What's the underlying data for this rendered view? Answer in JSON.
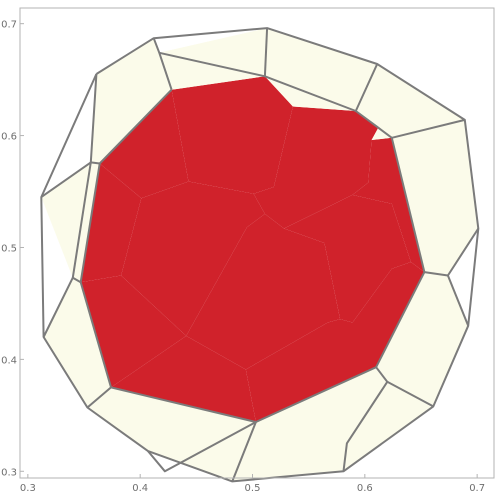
{
  "chart_data": {
    "type": "polygon_map",
    "title": "",
    "xlabel": "",
    "ylabel": "",
    "xlim": [
      0.293,
      0.715
    ],
    "ylim": [
      0.294,
      0.714
    ],
    "xticks": [
      "0.3",
      "0.4",
      "0.5",
      "0.6",
      "0.7"
    ],
    "yticks": [
      "0.3",
      "0.4",
      "0.5",
      "0.6",
      "0.7"
    ],
    "grid": false,
    "colors": {
      "inner": "#d0222b",
      "outer": "#fbfbea",
      "edge": "#7b7b7b"
    },
    "regions": [
      {
        "group": "inner",
        "points": [
          [
            0.428,
            0.641
          ],
          [
            0.511,
            0.653
          ],
          [
            0.536,
            0.626
          ],
          [
            0.519,
            0.554
          ],
          [
            0.501,
            0.548
          ],
          [
            0.443,
            0.559
          ]
        ]
      },
      {
        "group": "inner",
        "points": [
          [
            0.536,
            0.626
          ],
          [
            0.592,
            0.622
          ],
          [
            0.612,
            0.607
          ],
          [
            0.606,
            0.596
          ],
          [
            0.603,
            0.558
          ],
          [
            0.589,
            0.547
          ],
          [
            0.528,
            0.517
          ],
          [
            0.511,
            0.53
          ],
          [
            0.501,
            0.548
          ],
          [
            0.519,
            0.554
          ]
        ]
      },
      {
        "group": "inner",
        "points": [
          [
            0.428,
            0.641
          ],
          [
            0.443,
            0.559
          ],
          [
            0.401,
            0.544
          ],
          [
            0.364,
            0.575
          ]
        ]
      },
      {
        "group": "inner",
        "points": [
          [
            0.364,
            0.575
          ],
          [
            0.401,
            0.544
          ],
          [
            0.383,
            0.475
          ],
          [
            0.347,
            0.469
          ]
        ]
      },
      {
        "group": "inner",
        "points": [
          [
            0.401,
            0.544
          ],
          [
            0.443,
            0.559
          ],
          [
            0.501,
            0.548
          ],
          [
            0.511,
            0.53
          ],
          [
            0.495,
            0.518
          ],
          [
            0.441,
            0.421
          ],
          [
            0.383,
            0.475
          ]
        ]
      },
      {
        "group": "inner",
        "points": [
          [
            0.347,
            0.469
          ],
          [
            0.383,
            0.475
          ],
          [
            0.441,
            0.421
          ],
          [
            0.374,
            0.375
          ]
        ]
      },
      {
        "group": "inner",
        "points": [
          [
            0.511,
            0.53
          ],
          [
            0.528,
            0.517
          ],
          [
            0.564,
            0.504
          ],
          [
            0.578,
            0.436
          ],
          [
            0.567,
            0.433
          ],
          [
            0.494,
            0.391
          ],
          [
            0.441,
            0.421
          ],
          [
            0.495,
            0.518
          ]
        ]
      },
      {
        "group": "inner",
        "points": [
          [
            0.589,
            0.547
          ],
          [
            0.624,
            0.539
          ],
          [
            0.641,
            0.487
          ],
          [
            0.624,
            0.481
          ],
          [
            0.589,
            0.433
          ],
          [
            0.578,
            0.436
          ],
          [
            0.564,
            0.504
          ],
          [
            0.528,
            0.517
          ]
        ]
      },
      {
        "group": "inner",
        "points": [
          [
            0.606,
            0.596
          ],
          [
            0.624,
            0.598
          ],
          [
            0.653,
            0.478
          ],
          [
            0.641,
            0.487
          ],
          [
            0.624,
            0.539
          ],
          [
            0.589,
            0.547
          ],
          [
            0.603,
            0.558
          ]
        ]
      },
      {
        "group": "inner",
        "points": [
          [
            0.374,
            0.375
          ],
          [
            0.441,
            0.421
          ],
          [
            0.494,
            0.391
          ],
          [
            0.503,
            0.344
          ]
        ]
      },
      {
        "group": "inner",
        "points": [
          [
            0.494,
            0.391
          ],
          [
            0.567,
            0.433
          ],
          [
            0.578,
            0.436
          ],
          [
            0.589,
            0.433
          ],
          [
            0.624,
            0.481
          ],
          [
            0.641,
            0.487
          ],
          [
            0.653,
            0.478
          ],
          [
            0.61,
            0.393
          ],
          [
            0.503,
            0.344
          ]
        ]
      },
      {
        "group": "outer",
        "points": [
          [
            0.412,
            0.687
          ],
          [
            0.417,
            0.674
          ],
          [
            0.513,
            0.696
          ],
          [
            0.511,
            0.653
          ],
          [
            0.428,
            0.641
          ],
          [
            0.364,
            0.575
          ],
          [
            0.356,
            0.576
          ],
          [
            0.361,
            0.655
          ]
        ]
      },
      {
        "group": "outer",
        "points": [
          [
            0.417,
            0.674
          ],
          [
            0.513,
            0.696
          ],
          [
            0.511,
            0.653
          ]
        ]
      },
      {
        "group": "outer",
        "points": [
          [
            0.513,
            0.696
          ],
          [
            0.611,
            0.664
          ],
          [
            0.592,
            0.622
          ],
          [
            0.536,
            0.626
          ],
          [
            0.511,
            0.653
          ]
        ]
      },
      {
        "group": "outer",
        "points": [
          [
            0.356,
            0.576
          ],
          [
            0.364,
            0.575
          ],
          [
            0.347,
            0.469
          ],
          [
            0.34,
            0.473
          ]
        ]
      },
      {
        "group": "outer",
        "points": [
          [
            0.34,
            0.473
          ],
          [
            0.347,
            0.469
          ],
          [
            0.374,
            0.375
          ],
          [
            0.353,
            0.357
          ],
          [
            0.314,
            0.42
          ]
        ]
      },
      {
        "group": "outer",
        "points": [
          [
            0.353,
            0.357
          ],
          [
            0.374,
            0.375
          ],
          [
            0.503,
            0.344
          ],
          [
            0.482,
            0.291
          ],
          [
            0.407,
            0.318
          ]
        ]
      },
      {
        "group": "outer",
        "points": [
          [
            0.503,
            0.344
          ],
          [
            0.61,
            0.393
          ],
          [
            0.62,
            0.38
          ],
          [
            0.661,
            0.358
          ],
          [
            0.581,
            0.3
          ],
          [
            0.482,
            0.291
          ]
        ]
      },
      {
        "group": "outer",
        "points": [
          [
            0.62,
            0.38
          ],
          [
            0.61,
            0.393
          ],
          [
            0.653,
            0.478
          ],
          [
            0.674,
            0.475
          ],
          [
            0.692,
            0.43
          ],
          [
            0.661,
            0.358
          ]
        ]
      },
      {
        "group": "outer",
        "points": [
          [
            0.624,
            0.598
          ],
          [
            0.653,
            0.478
          ],
          [
            0.674,
            0.475
          ],
          [
            0.701,
            0.517
          ],
          [
            0.689,
            0.614
          ]
        ]
      },
      {
        "group": "outer",
        "points": [
          [
            0.606,
            0.596
          ],
          [
            0.624,
            0.598
          ],
          [
            0.689,
            0.614
          ],
          [
            0.611,
            0.664
          ],
          [
            0.592,
            0.622
          ],
          [
            0.612,
            0.607
          ]
        ]
      },
      {
        "group": "outer",
        "points": [
          [
            0.356,
            0.576
          ],
          [
            0.312,
            0.545
          ],
          [
            0.34,
            0.473
          ]
        ]
      },
      {
        "group": "outer",
        "points": [
          [
            0.361,
            0.655
          ],
          [
            0.412,
            0.687
          ],
          [
            0.417,
            0.674
          ],
          [
            0.428,
            0.641
          ],
          [
            0.364,
            0.575
          ],
          [
            0.356,
            0.576
          ]
        ]
      }
    ],
    "edges": [
      [
        [
          0.361,
          0.655
        ],
        [
          0.412,
          0.687
        ],
        [
          0.513,
          0.696
        ],
        [
          0.611,
          0.664
        ],
        [
          0.689,
          0.614
        ],
        [
          0.701,
          0.517
        ],
        [
          0.692,
          0.43
        ],
        [
          0.661,
          0.358
        ],
        [
          0.581,
          0.3
        ],
        [
          0.482,
          0.291
        ],
        [
          0.407,
          0.318
        ],
        [
          0.353,
          0.357
        ],
        [
          0.314,
          0.42
        ],
        [
          0.312,
          0.545
        ],
        [
          0.361,
          0.655
        ]
      ],
      [
        [
          0.417,
          0.674
        ],
        [
          0.511,
          0.653
        ],
        [
          0.592,
          0.622
        ],
        [
          0.612,
          0.607
        ],
        [
          0.624,
          0.598
        ],
        [
          0.653,
          0.478
        ],
        [
          0.61,
          0.393
        ],
        [
          0.503,
          0.344
        ],
        [
          0.374,
          0.375
        ],
        [
          0.347,
          0.469
        ],
        [
          0.364,
          0.575
        ],
        [
          0.428,
          0.641
        ]
      ],
      [
        [
          0.412,
          0.687
        ],
        [
          0.417,
          0.674
        ],
        [
          0.428,
          0.641
        ]
      ],
      [
        [
          0.513,
          0.696
        ],
        [
          0.511,
          0.653
        ]
      ],
      [
        [
          0.611,
          0.664
        ],
        [
          0.592,
          0.622
        ]
      ],
      [
        [
          0.689,
          0.614
        ],
        [
          0.624,
          0.598
        ]
      ],
      [
        [
          0.701,
          0.517
        ],
        [
          0.674,
          0.475
        ],
        [
          0.653,
          0.478
        ]
      ],
      [
        [
          0.692,
          0.43
        ],
        [
          0.674,
          0.475
        ]
      ],
      [
        [
          0.661,
          0.358
        ],
        [
          0.62,
          0.38
        ],
        [
          0.61,
          0.393
        ]
      ],
      [
        [
          0.581,
          0.3
        ],
        [
          0.584,
          0.325
        ],
        [
          0.62,
          0.38
        ]
      ],
      [
        [
          0.482,
          0.291
        ],
        [
          0.503,
          0.344
        ]
      ],
      [
        [
          0.407,
          0.318
        ],
        [
          0.422,
          0.3
        ],
        [
          0.503,
          0.344
        ]
      ],
      [
        [
          0.353,
          0.357
        ],
        [
          0.374,
          0.375
        ]
      ],
      [
        [
          0.314,
          0.42
        ],
        [
          0.34,
          0.473
        ],
        [
          0.347,
          0.469
        ]
      ],
      [
        [
          0.312,
          0.545
        ],
        [
          0.356,
          0.576
        ],
        [
          0.364,
          0.575
        ]
      ],
      [
        [
          0.361,
          0.655
        ],
        [
          0.356,
          0.576
        ],
        [
          0.34,
          0.473
        ]
      ]
    ]
  }
}
